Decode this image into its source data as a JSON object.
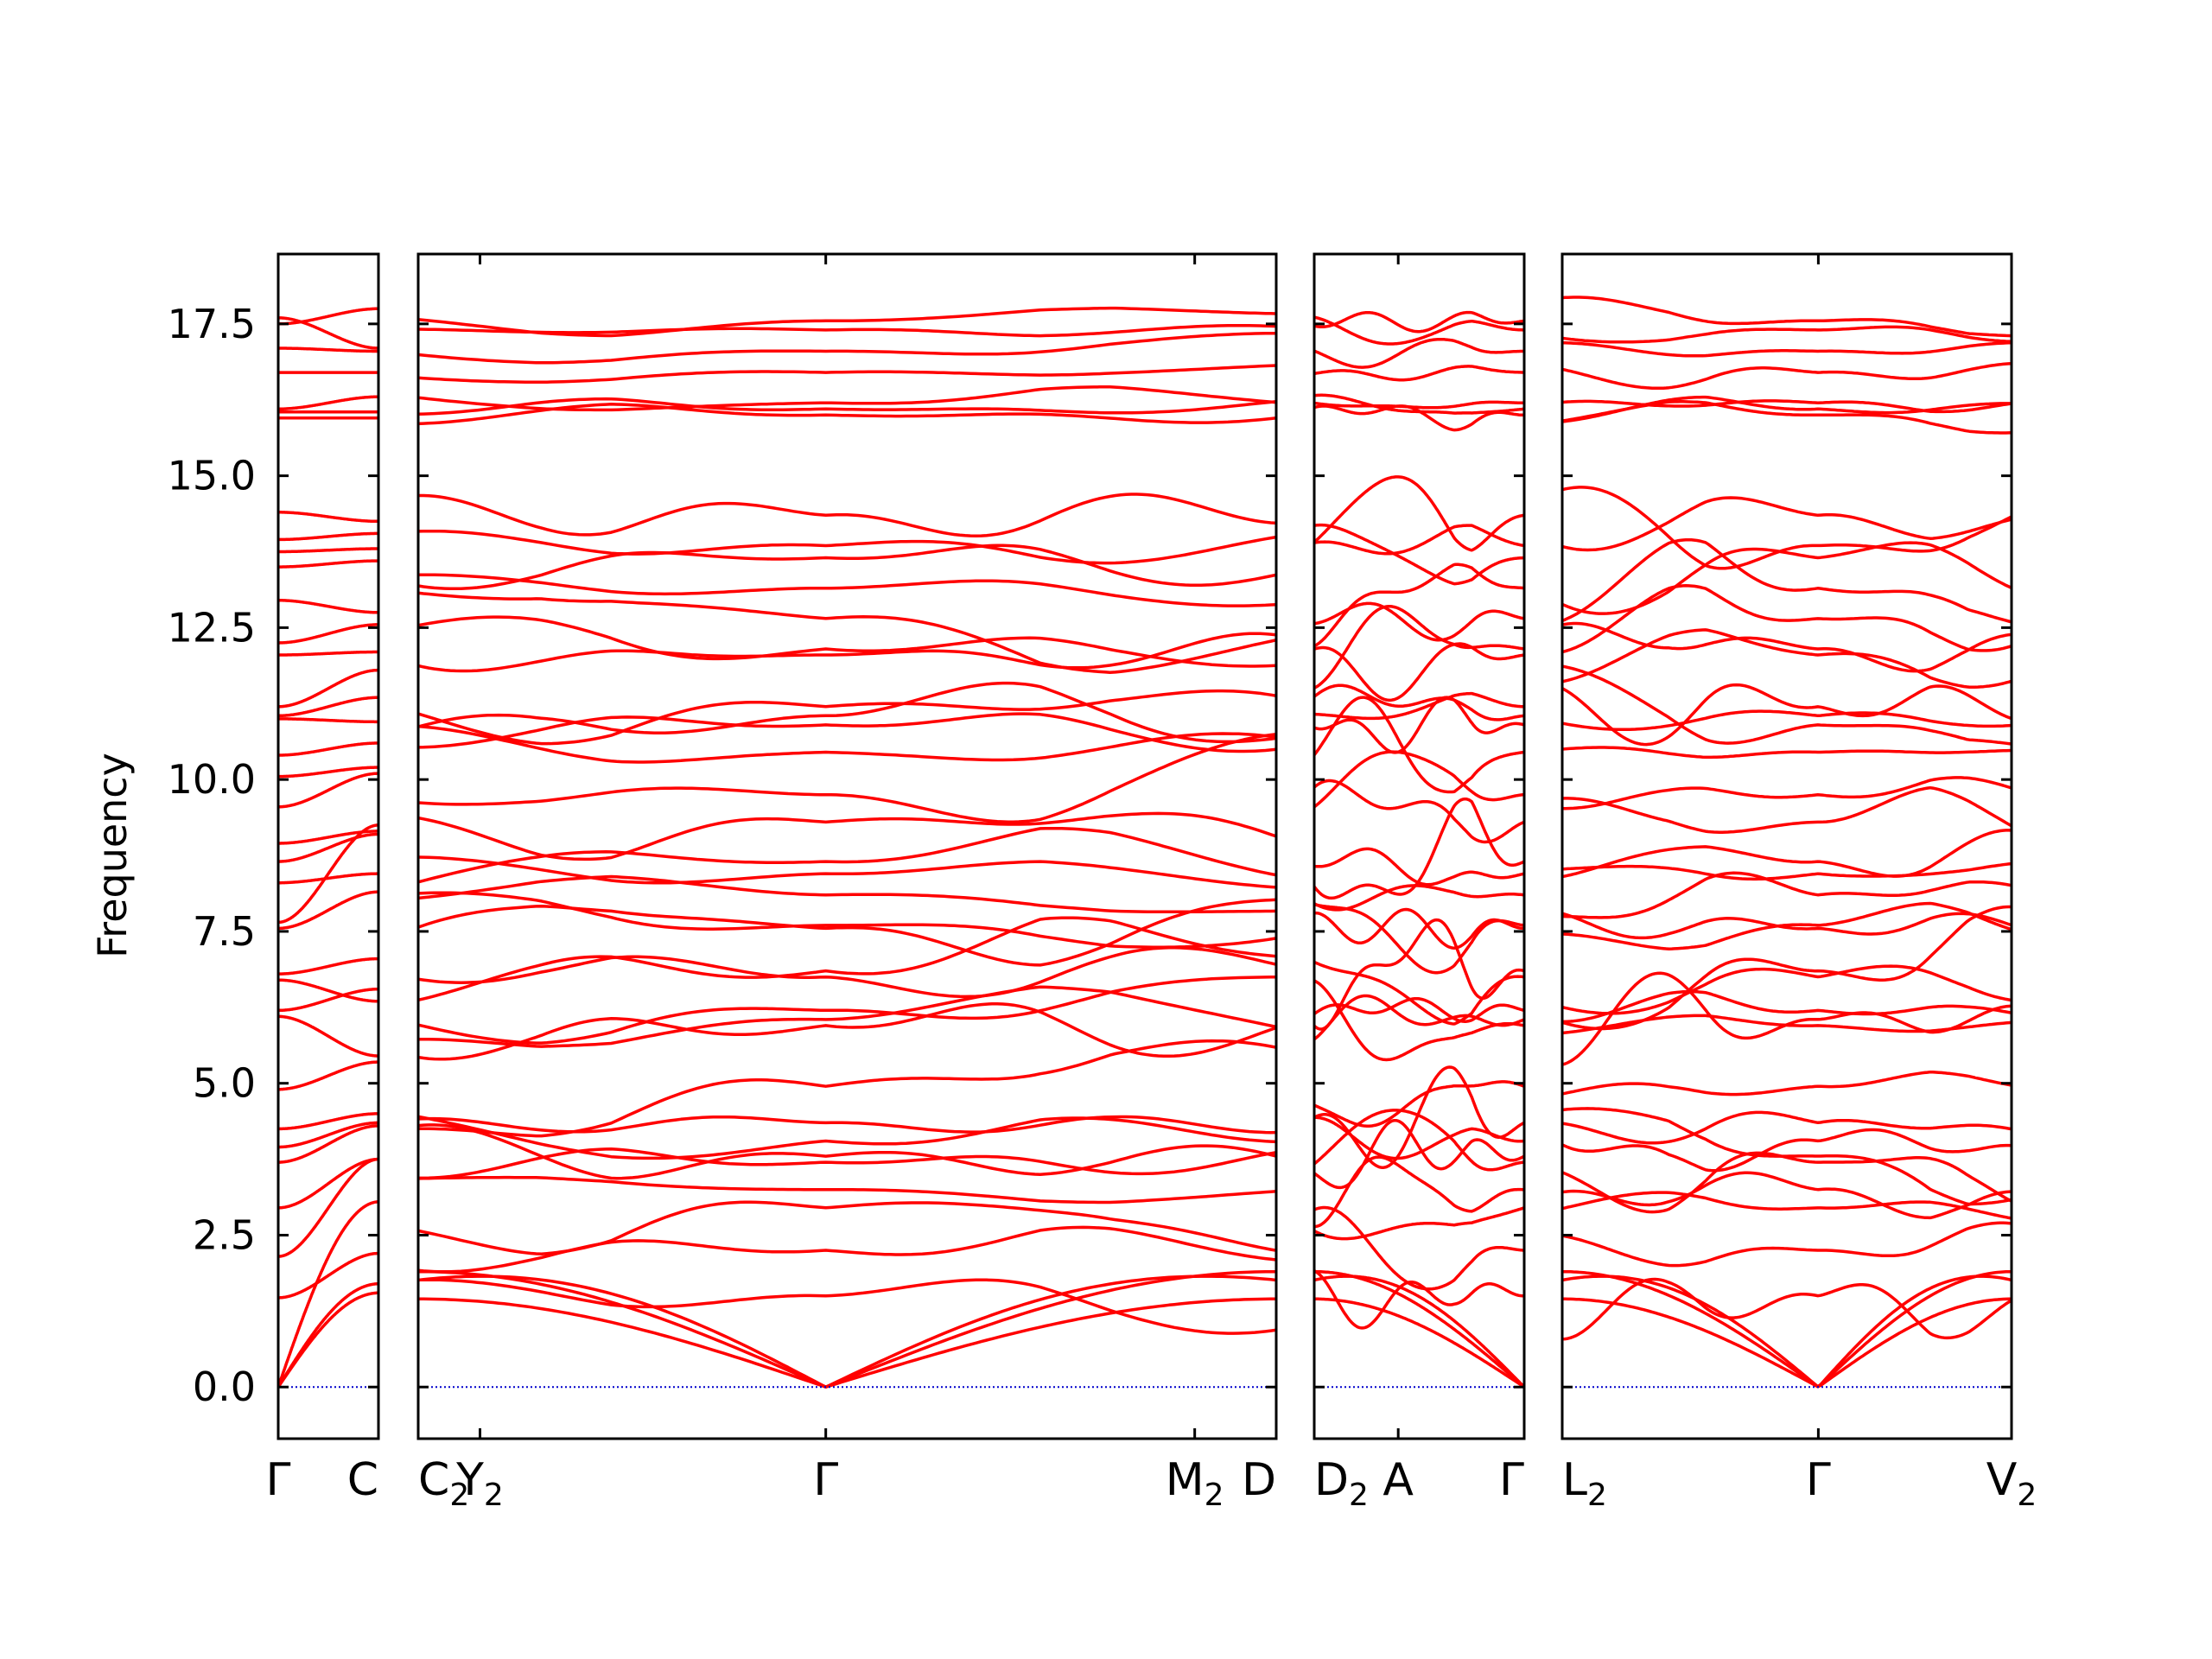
{
  "chart_data": {
    "type": "line",
    "title": "",
    "xlabel": "",
    "ylabel": "Frequency",
    "ylim": [
      -0.85,
      18.65
    ],
    "yticks": [
      "0.0",
      "2.5",
      "5.0",
      "7.5",
      "10.0",
      "12.5",
      "15.0",
      "17.5"
    ],
    "line_color": "#ff0000",
    "zero_line_color": "#0000cc",
    "grid": false,
    "panels": [
      {
        "kpoints": [
          {
            "base": "Γ",
            "sub": "",
            "pos": 0.0
          },
          {
            "base": "C",
            "sub": "",
            "pos": 1.0
          }
        ],
        "bands_left": [
          0,
          0,
          0,
          1.47,
          2.15,
          2.95,
          3.7,
          3.95,
          4.25,
          4.9,
          6.1,
          6.2,
          6.7,
          6.8,
          7.55,
          7.65,
          8.3,
          8.65,
          8.95,
          9.55,
          10.05,
          10.4,
          11.0,
          11.05,
          11.2,
          12.05,
          12.25,
          12.95,
          13.5,
          13.75,
          13.95,
          14.4,
          15.95,
          16.05,
          16.1,
          16.7,
          17.1,
          17.5,
          17.6
        ],
        "bands_right": [
          1.55,
          1.7,
          3.05,
          2.2,
          3.75,
          3.75,
          4.3,
          4.35,
          4.5,
          5.35,
          5.45,
          6.55,
          6.35,
          7.05,
          8.15,
          9.25,
          8.45,
          9.1,
          9.15,
          10.1,
          10.2,
          10.6,
          10.95,
          11.35,
          11.8,
          12.1,
          12.55,
          12.75,
          13.6,
          13.8,
          14.05,
          14.25,
          15.95,
          16.05,
          16.3,
          16.7,
          17.05,
          17.75,
          17.1
        ]
      },
      {
        "kpoints": [
          {
            "base": "C",
            "sub": "2",
            "pos": 0.0
          },
          {
            "base": "Y",
            "sub": "2",
            "pos": 0.072
          },
          {
            "base": "Γ",
            "sub": "",
            "pos": 0.475
          },
          {
            "base": "M",
            "sub": "2",
            "pos": 0.905
          },
          {
            "base": "D",
            "sub": "",
            "pos": 1.0
          }
        ],
        "gamma_values": [
          0,
          0,
          0,
          1.5,
          2.25,
          2.95,
          3.25,
          3.7,
          3.8,
          4.05,
          4.35,
          4.95,
          5.95,
          6.05,
          6.2,
          6.75,
          6.85,
          7.55,
          7.6,
          8.1,
          8.45,
          8.65,
          9.3,
          9.75,
          10.45,
          10.9,
          11.05,
          11.2,
          12.05,
          12.15,
          12.65,
          13.15,
          13.65,
          13.85,
          14.35,
          16.0,
          16.1,
          16.2,
          16.7,
          17.05,
          17.4,
          17.55
        ]
      },
      {
        "kpoints": [
          {
            "base": "D",
            "sub": "2",
            "pos": 0.0
          },
          {
            "base": "A",
            "sub": "",
            "pos": 0.4
          },
          {
            "base": "Γ",
            "sub": "",
            "pos": 1.0
          }
        ]
      },
      {
        "kpoints": [
          {
            "base": "L",
            "sub": "2",
            "pos": 0.0
          },
          {
            "base": "Γ",
            "sub": "",
            "pos": 0.57
          },
          {
            "base": "V",
            "sub": "2",
            "pos": 1.0
          }
        ]
      }
    ]
  }
}
